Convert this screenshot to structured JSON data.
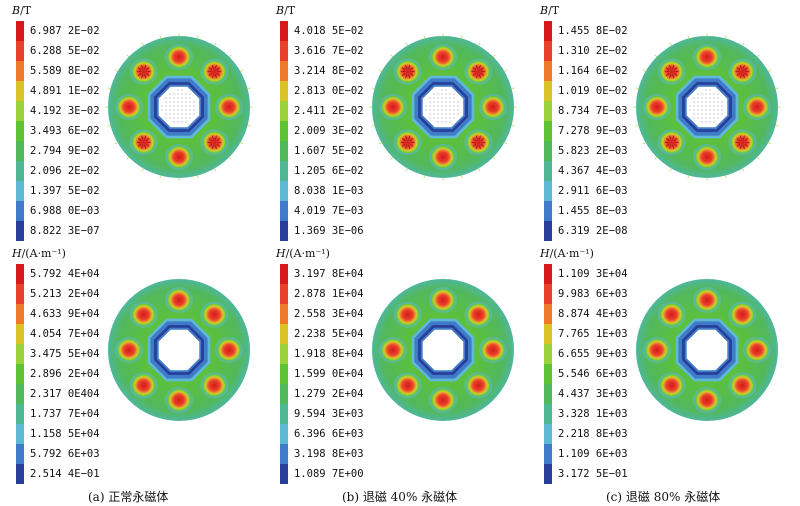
{
  "colors": [
    "#d7191c",
    "#e8402a",
    "#f07a2c",
    "#d9c327",
    "#9bd23a",
    "#5ec235",
    "#52b85c",
    "#4fb795",
    "#5fb8d6",
    "#3f7bc9",
    "#283f9a"
  ],
  "figures": [
    {
      "id": "a-B",
      "quantity": "B",
      "unit": "/T",
      "values": [
        "6.987 2E−02",
        "6.288 5E−02",
        "5.589 8E−02",
        "4.891 1E−02",
        "4.192 3E−02",
        "3.493 6E−02",
        "2.794 9E−02",
        "2.096 2E−02",
        "1.397 5E−02",
        "6.988 0E−03",
        "8.822 3E−07"
      ]
    },
    {
      "id": "b-B",
      "quantity": "B",
      "unit": "/T",
      "values": [
        "4.018 5E−02",
        "3.616 7E−02",
        "3.214 8E−02",
        "2.813 0E−02",
        "2.411 2E−02",
        "2.009 3E−02",
        "1.607 5E−02",
        "1.205 6E−02",
        "8.038 1E−03",
        "4.019 7E−03",
        "1.369 3E−06"
      ]
    },
    {
      "id": "c-B",
      "quantity": "B",
      "unit": "/T",
      "values": [
        "1.455 8E−02",
        "1.310 2E−02",
        "1.164 6E−02",
        "1.019 0E−02",
        "8.734 7E−03",
        "7.278 9E−03",
        "5.823 2E−03",
        "4.367 4E−03",
        "2.911 6E−03",
        "1.455 8E−03",
        "6.319 2E−08"
      ]
    },
    {
      "id": "a-H",
      "quantity": "H",
      "unit": "/(A·m⁻¹)",
      "values": [
        "5.792 4E+04",
        "5.213 2E+04",
        "4.633 9E+04",
        "4.054 7E+04",
        "3.475 5E+04",
        "2.896 2E+04",
        "2.317 0E404",
        "1.737 7E+04",
        "1.158 5E+04",
        "5.792 6E+03",
        "2.514 4E−01"
      ]
    },
    {
      "id": "b-H",
      "quantity": "H",
      "unit": "/(A·m⁻¹)",
      "values": [
        "3.197 8E+04",
        "2.878 1E+04",
        "2.558 3E+04",
        "2.238 5E+04",
        "1.918 8E+04",
        "1.599 0E+04",
        "1.279 2E+04",
        "9.594 3E+03",
        "6.396 6E+03",
        "3.198 8E+03",
        "1.089 7E+00"
      ]
    },
    {
      "id": "c-H",
      "quantity": "H",
      "unit": "/(A·m⁻¹)",
      "values": [
        "1.109 3E+04",
        "9.983 6E+03",
        "8.874 4E+03",
        "7.765 1E+03",
        "6.655 9E+03",
        "5.546 6E+03",
        "4.437 3E+03",
        "3.328 1E+03",
        "2.218 8E+03",
        "1.109 6E+03",
        "3.172 5E−01"
      ]
    }
  ],
  "captions": [
    "(a) 正常永磁体",
    "(b) 退磁 40% 永磁体",
    "(c) 退磁 80% 永磁体"
  ]
}
